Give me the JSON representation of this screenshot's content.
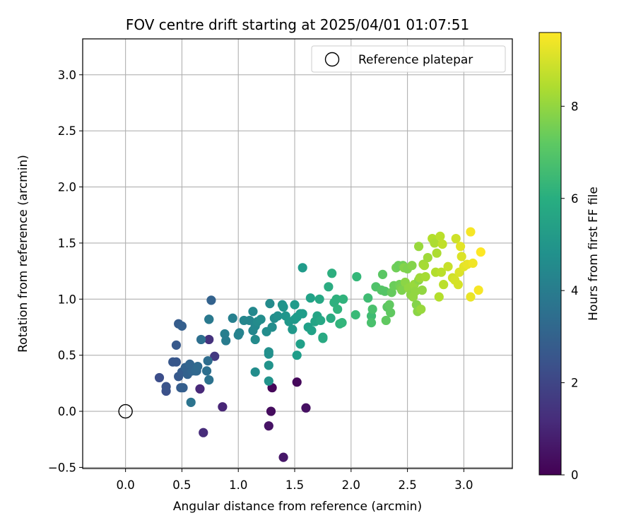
{
  "chart_data": {
    "type": "scatter",
    "title": "FOV centre drift starting at 2025/04/01 01:07:51",
    "xlabel": "Angular distance from reference (arcmin)",
    "ylabel": "Rotation from reference (arcmin)",
    "xlim": [
      -0.38,
      3.43
    ],
    "ylim": [
      -0.51,
      3.32
    ],
    "xticks": [
      "0.0",
      "0.5",
      "1.0",
      "1.5",
      "2.0",
      "2.5",
      "3.0"
    ],
    "yticks": [
      "−0.5",
      "0.0",
      "0.5",
      "1.0",
      "1.5",
      "2.0",
      "2.5",
      "3.0"
    ],
    "grid": true,
    "legend": {
      "placement": "top-right",
      "entries": [
        "Reference platepar"
      ]
    },
    "reference_point": {
      "label": "Reference platepar",
      "x": 0.0,
      "y": 0.0
    },
    "colorbar": {
      "label": "Hours from first FF file",
      "min": 0,
      "max": 9.6,
      "ticks": [
        "0",
        "2",
        "4",
        "6",
        "8"
      ],
      "colormap": "viridis"
    },
    "series": [
      {
        "points": [
          [
            1.3,
            0.21
          ],
          [
            1.52,
            0.26
          ],
          [
            1.29,
            0.0
          ],
          [
            1.6,
            0.03
          ],
          [
            1.27,
            -0.13
          ],
          [
            1.4,
            -0.41
          ],
          [
            0.86,
            0.04
          ],
          [
            0.66,
            0.2
          ],
          [
            0.69,
            -0.19
          ],
          [
            0.74,
            0.64
          ],
          [
            0.3,
            0.3
          ],
          [
            0.36,
            0.18
          ],
          [
            0.36,
            0.22
          ],
          [
            0.42,
            0.44
          ],
          [
            0.45,
            0.44
          ],
          [
            0.45,
            0.59
          ],
          [
            0.47,
            0.31
          ],
          [
            0.49,
            0.21
          ],
          [
            0.5,
            0.35
          ],
          [
            0.47,
            0.78
          ],
          [
            0.5,
            0.76
          ],
          [
            0.51,
            0.21
          ],
          [
            0.53,
            0.39
          ],
          [
            0.55,
            0.33
          ],
          [
            0.56,
            0.38
          ],
          [
            0.57,
            0.42
          ],
          [
            0.59,
            0.36
          ],
          [
            0.6,
            0.38
          ],
          [
            0.62,
            0.36
          ],
          [
            0.63,
            0.36
          ],
          [
            0.64,
            0.4
          ],
          [
            0.79,
            0.49
          ],
          [
            0.76,
            0.99
          ],
          [
            0.73,
            0.45
          ],
          [
            0.72,
            0.36
          ],
          [
            0.74,
            0.28
          ],
          [
            0.67,
            0.64
          ],
          [
            0.58,
            0.08
          ],
          [
            0.74,
            0.82
          ],
          [
            0.74,
            0.82
          ],
          [
            0.88,
            0.69
          ],
          [
            0.89,
            0.63
          ],
          [
            0.95,
            0.83
          ],
          [
            1.0,
            0.68
          ],
          [
            1.01,
            0.7
          ],
          [
            1.05,
            0.81
          ],
          [
            1.1,
            0.81
          ],
          [
            1.13,
            0.72
          ],
          [
            1.13,
            0.89
          ],
          [
            1.15,
            0.76
          ],
          [
            1.15,
            0.64
          ],
          [
            1.17,
            0.8
          ],
          [
            1.2,
            0.82
          ],
          [
            1.15,
            0.35
          ],
          [
            1.25,
            0.71
          ],
          [
            1.27,
            0.51
          ],
          [
            1.27,
            0.53
          ],
          [
            1.27,
            0.41
          ],
          [
            1.27,
            0.27
          ],
          [
            1.28,
            0.96
          ],
          [
            1.3,
            0.75
          ],
          [
            1.32,
            0.83
          ],
          [
            1.35,
            0.85
          ],
          [
            1.39,
            0.95
          ],
          [
            1.4,
            0.93
          ],
          [
            1.42,
            0.85
          ],
          [
            1.45,
            0.8
          ],
          [
            1.48,
            0.73
          ],
          [
            1.5,
            0.82
          ],
          [
            1.52,
            0.84
          ],
          [
            1.52,
            0.5
          ],
          [
            1.55,
            0.87
          ],
          [
            1.55,
            0.6
          ],
          [
            1.57,
            0.87
          ],
          [
            1.5,
            0.95
          ],
          [
            1.57,
            1.28
          ],
          [
            1.62,
            0.75
          ],
          [
            1.64,
            1.01
          ],
          [
            1.65,
            0.72
          ],
          [
            1.68,
            0.8
          ],
          [
            1.7,
            0.85
          ],
          [
            1.72,
            1.0
          ],
          [
            1.73,
            0.81
          ],
          [
            1.75,
            0.66
          ],
          [
            1.75,
            0.65
          ],
          [
            1.8,
            1.11
          ],
          [
            1.82,
            0.83
          ],
          [
            1.83,
            1.23
          ],
          [
            1.85,
            0.97
          ],
          [
            1.87,
            1.0
          ],
          [
            1.88,
            0.91
          ],
          [
            1.9,
            0.78
          ],
          [
            1.92,
            0.79
          ],
          [
            1.93,
            1.0
          ],
          [
            2.04,
            0.86
          ],
          [
            2.05,
            1.2
          ],
          [
            2.15,
            1.01
          ],
          [
            2.18,
            0.85
          ],
          [
            2.18,
            0.79
          ],
          [
            2.19,
            0.91
          ],
          [
            2.22,
            1.11
          ],
          [
            2.27,
            1.08
          ],
          [
            2.28,
            1.22
          ],
          [
            2.3,
            1.07
          ],
          [
            2.31,
            0.81
          ],
          [
            2.32,
            0.93
          ],
          [
            2.34,
            0.95
          ],
          [
            2.35,
            0.88
          ],
          [
            2.36,
            1.06
          ],
          [
            2.38,
            1.12
          ],
          [
            2.4,
            1.28
          ],
          [
            2.42,
            1.3
          ],
          [
            2.43,
            1.13
          ],
          [
            2.44,
            1.1
          ],
          [
            2.45,
            1.08
          ],
          [
            2.46,
            1.3
          ],
          [
            2.47,
            1.28
          ],
          [
            2.48,
            1.15
          ],
          [
            2.5,
            1.27
          ],
          [
            2.51,
            1.1
          ],
          [
            2.53,
            1.04
          ],
          [
            2.54,
            1.3
          ],
          [
            2.55,
            1.02
          ],
          [
            2.56,
            1.13
          ],
          [
            2.57,
            1.07
          ],
          [
            2.58,
            0.95
          ],
          [
            2.59,
            0.89
          ],
          [
            2.6,
            1.17
          ],
          [
            2.6,
            1.47
          ],
          [
            2.61,
            1.19
          ],
          [
            2.62,
            0.91
          ],
          [
            2.63,
            1.08
          ],
          [
            2.64,
            1.31
          ],
          [
            2.65,
            1.3
          ],
          [
            2.66,
            1.2
          ],
          [
            2.68,
            1.37
          ],
          [
            2.72,
            1.54
          ],
          [
            2.74,
            1.5
          ],
          [
            2.75,
            1.24
          ],
          [
            2.76,
            1.41
          ],
          [
            2.78,
            1.02
          ],
          [
            2.79,
            1.56
          ],
          [
            2.8,
            1.24
          ],
          [
            2.81,
            1.49
          ],
          [
            2.82,
            1.13
          ],
          [
            2.86,
            1.29
          ],
          [
            2.9,
            1.19
          ],
          [
            2.92,
            1.17
          ],
          [
            2.93,
            1.54
          ],
          [
            2.95,
            1.13
          ],
          [
            2.96,
            1.24
          ],
          [
            2.97,
            1.47
          ],
          [
            2.98,
            1.38
          ],
          [
            3.0,
            1.29
          ],
          [
            3.03,
            1.31
          ],
          [
            3.06,
            1.6
          ],
          [
            3.06,
            1.02
          ],
          [
            3.08,
            1.32
          ],
          [
            3.13,
            1.08
          ],
          [
            3.15,
            1.42
          ]
        ],
        "hours": [
          0.15,
          0.2,
          0.3,
          0.4,
          0.5,
          0.6,
          1.0,
          1.1,
          1.2,
          1.4,
          2.3,
          2.4,
          2.5,
          2.6,
          2.6,
          2.7,
          2.7,
          2.8,
          2.8,
          2.8,
          2.9,
          2.9,
          3.0,
          3.0,
          3.0,
          3.1,
          3.1,
          3.1,
          3.2,
          3.2,
          3.3,
          1.6,
          3.0,
          3.4,
          3.5,
          3.6,
          3.5,
          3.7,
          3.8,
          3.9,
          4.1,
          4.0,
          4.2,
          4.3,
          4.3,
          4.4,
          4.4,
          4.4,
          4.5,
          4.5,
          4.6,
          4.6,
          4.7,
          4.7,
          4.7,
          4.8,
          4.8,
          4.9,
          4.9,
          4.6,
          4.7,
          4.7,
          4.8,
          4.9,
          5.0,
          5.0,
          5.1,
          5.1,
          5.1,
          5.2,
          5.3,
          5.2,
          5.4,
          5.3,
          5.2,
          5.2,
          5.4,
          5.5,
          5.5,
          5.6,
          5.6,
          5.7,
          5.7,
          5.8,
          5.8,
          5.9,
          5.9,
          6.0,
          6.1,
          6.1,
          6.2,
          6.2,
          6.3,
          6.2,
          6.5,
          6.4,
          6.6,
          6.6,
          6.8,
          6.8,
          6.9,
          7.0,
          7.1,
          7.0,
          7.2,
          7.1,
          7.2,
          7.2,
          7.3,
          7.4,
          7.5,
          7.4,
          7.5,
          7.6,
          7.7,
          7.5,
          7.8,
          7.9,
          7.7,
          8.0,
          7.9,
          7.8,
          8.0,
          8.1,
          8.0,
          7.8,
          7.9,
          7.9,
          8.1,
          8.2,
          8.1,
          8.0,
          8.2,
          8.3,
          8.3,
          8.2,
          8.5,
          8.4,
          8.5,
          8.4,
          8.5,
          8.6,
          8.6,
          8.7,
          8.6,
          8.8,
          8.9,
          9.0,
          8.9,
          9.0,
          9.1,
          9.2,
          9.1,
          9.2,
          9.3,
          9.5,
          9.3,
          9.4,
          9.5,
          9.6
        ]
      }
    ]
  }
}
